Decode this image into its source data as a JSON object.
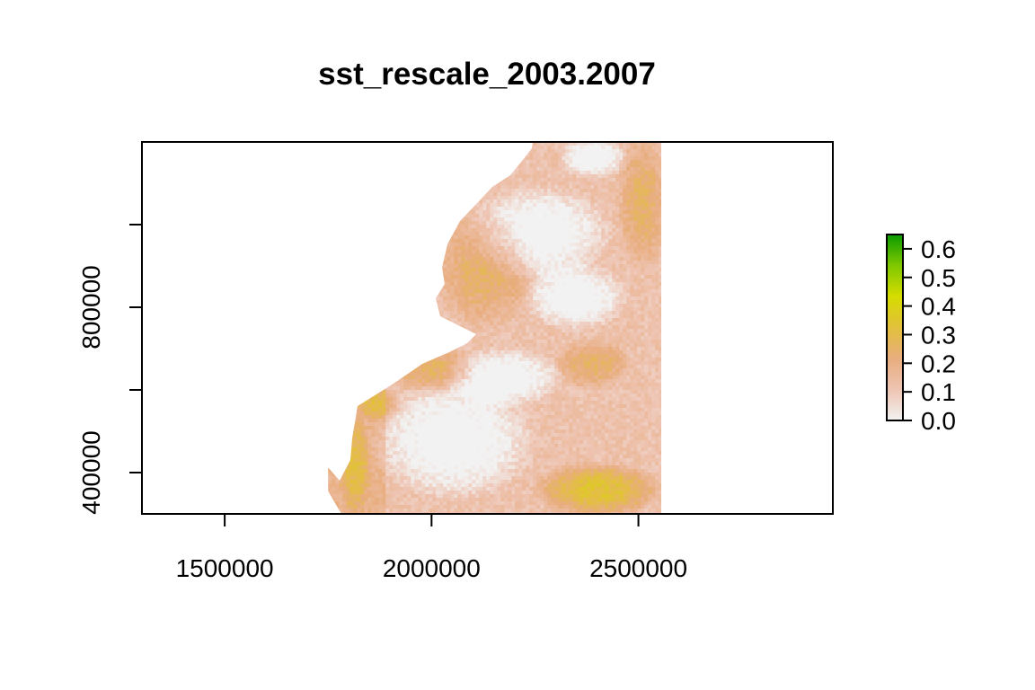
{
  "chart_data": {
    "type": "heatmap",
    "title": "sst_rescale_2003.2007",
    "xlabel": "",
    "ylabel": "",
    "xlim": [
      1300000,
      2970000
    ],
    "ylim": [
      300000,
      1200000
    ],
    "x_ticks": [
      {
        "value": 1500000,
        "label": "1500000"
      },
      {
        "value": 2000000,
        "label": "2000000"
      },
      {
        "value": 2500000,
        "label": "2500000"
      }
    ],
    "y_ticks": [
      {
        "value": 400000,
        "label": "400000"
      },
      {
        "value": 600000,
        "label": ""
      },
      {
        "value": 800000,
        "label": "800000"
      },
      {
        "value": 1000000,
        "label": ""
      }
    ],
    "raster_extent": {
      "xmin": 1750000,
      "xmax": 2560000,
      "ymin": 300000,
      "ymax": 1200000
    },
    "legend": {
      "placement": "right",
      "range": [
        0.0,
        0.65
      ],
      "ticks": [
        {
          "value": 0.0,
          "label": "0.0"
        },
        {
          "value": 0.1,
          "label": "0.1"
        },
        {
          "value": 0.2,
          "label": "0.2"
        },
        {
          "value": 0.3,
          "label": "0.3"
        },
        {
          "value": 0.4,
          "label": "0.4"
        },
        {
          "value": 0.5,
          "label": "0.5"
        },
        {
          "value": 0.6,
          "label": "0.6"
        }
      ],
      "colors": [
        "#f2f2f2",
        "#eec4b2",
        "#e8ad7e",
        "#e2c03c",
        "#d6dc00",
        "#7fc800",
        "#0a9a00"
      ]
    }
  }
}
